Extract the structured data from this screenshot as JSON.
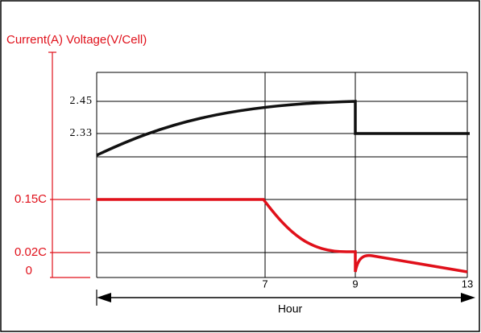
{
  "title": "Current(A) Voltage(V/Cell)",
  "current_ticks": [
    "0.15C",
    "0.02C",
    "0"
  ],
  "voltage_ticks": [
    "2.45",
    "2.33"
  ],
  "hour_ticks": [
    "7",
    "9",
    "13"
  ],
  "x_label": "Hour"
}
